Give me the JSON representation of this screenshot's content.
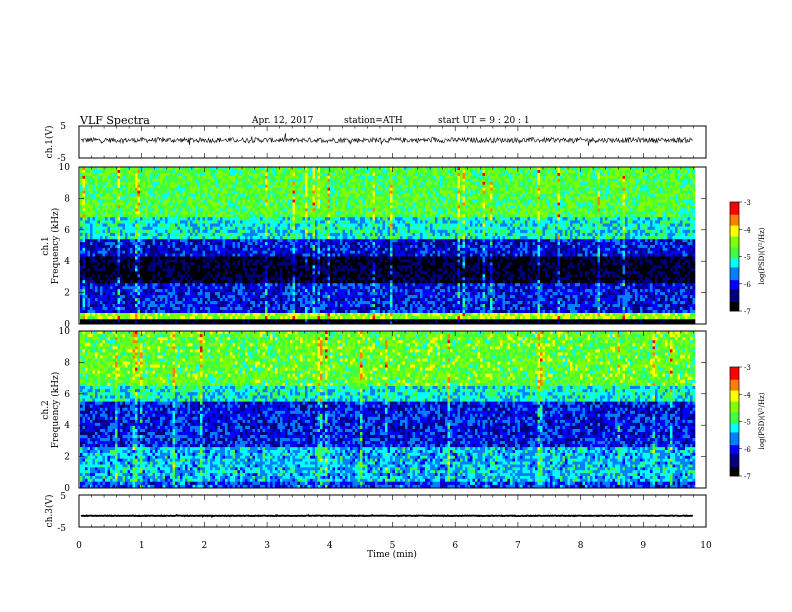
{
  "header": {
    "title": "VLF  Spectra",
    "date": "Apr. 12, 2017",
    "station": "station=ATH",
    "start": "start  UT  =    9  : 20 : 1"
  },
  "chart_data": [
    {
      "type": "line",
      "panel": "ch1-waveform",
      "ylabel": "ch.1(V)",
      "ylim": [
        -5,
        5
      ],
      "yticks": [
        "5",
        "-5"
      ],
      "xlim": [
        0,
        10
      ],
      "series": [
        {
          "baseline_v": 0.6,
          "noise_v": 0.8,
          "data_end_min": 9.8
        }
      ]
    },
    {
      "type": "heatmap",
      "panel": "ch1-spectrogram",
      "ylabel_top": "ch.1",
      "ylabel": "Frequency  (kHz)",
      "ylim": [
        0,
        10
      ],
      "yticks": [
        "0",
        "2",
        "4",
        "6",
        "8",
        "10"
      ],
      "xlim": [
        0,
        10
      ],
      "data_end_min": 9.8,
      "colorbar": {
        "label": "log(PSD)(V²/Hz)",
        "range": [
          -7,
          -3
        ],
        "ticks": [
          "-3",
          "-4",
          "-5",
          "-6",
          "-7"
        ]
      },
      "bands": [
        {
          "f_from": 10.0,
          "f_to": 6.8,
          "level": -4.7
        },
        {
          "f_from": 6.8,
          "f_to": 5.4,
          "level": -5.2
        },
        {
          "f_from": 5.4,
          "f_to": 4.3,
          "level": -6.1
        },
        {
          "f_from": 4.3,
          "f_to": 2.6,
          "level": -6.7
        },
        {
          "f_from": 2.6,
          "f_to": 0.7,
          "level": -6.0
        },
        {
          "f_from": 0.7,
          "f_to": 0.3,
          "level": -4.3
        },
        {
          "f_from": 0.3,
          "f_to": 0.0,
          "level": -7.0
        }
      ]
    },
    {
      "type": "heatmap",
      "panel": "ch2-spectrogram",
      "ylabel_top": "ch.2",
      "ylabel": "Frequency  (kHz)",
      "ylim": [
        0,
        10
      ],
      "yticks": [
        "0",
        "2",
        "4",
        "6",
        "8",
        "10"
      ],
      "xlim": [
        0,
        10
      ],
      "data_end_min": 9.8,
      "colorbar": {
        "label": "log(PSD)(V²/Hz)",
        "range": [
          -7,
          -3
        ],
        "ticks": [
          "-3",
          "-4",
          "-5",
          "-6",
          "-7"
        ]
      },
      "bands": [
        {
          "f_from": 10.0,
          "f_to": 6.5,
          "level": -4.6
        },
        {
          "f_from": 6.5,
          "f_to": 5.5,
          "level": -5.2
        },
        {
          "f_from": 5.5,
          "f_to": 2.6,
          "level": -6.0
        },
        {
          "f_from": 2.6,
          "f_to": 0.4,
          "level": -5.4
        },
        {
          "f_from": 0.4,
          "f_to": 0.0,
          "level": -5.8
        }
      ]
    },
    {
      "type": "line",
      "panel": "ch3-waveform",
      "ylabel": "ch.3(V)",
      "ylim": [
        -5,
        5
      ],
      "yticks": [
        "5",
        "-5"
      ],
      "xlim": [
        0,
        10
      ],
      "xlabel": "Time  (min)",
      "xticks": [
        "0",
        "1",
        "2",
        "3",
        "4",
        "5",
        "6",
        "7",
        "8",
        "9",
        "10"
      ],
      "series": [
        {
          "baseline_v": -1.5,
          "noise_v": 0.1,
          "data_end_min": 9.8
        }
      ]
    }
  ],
  "colors": {
    "palette": [
      "#000000",
      "#00007f",
      "#0000ff",
      "#0080ff",
      "#00ffff",
      "#40ff40",
      "#80ff00",
      "#ffff00",
      "#ff8000",
      "#ff0000",
      "#ffffff"
    ],
    "axis": "#000000"
  }
}
